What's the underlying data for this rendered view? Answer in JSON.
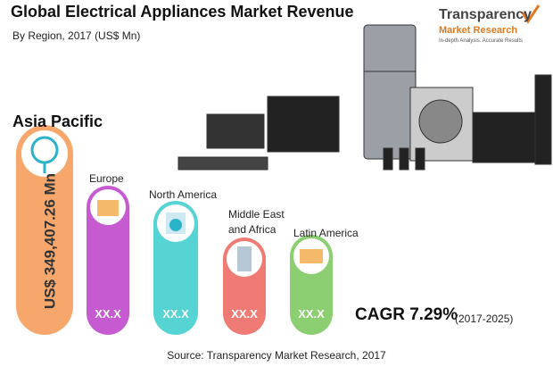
{
  "header": {
    "title": "Global Electrical Appliances Market Revenue",
    "subtitle": "By Region, 2017 (US$ Mn)"
  },
  "logo": {
    "name_top": "Transparency",
    "name_bottom": "Market Research",
    "tagline": "In-depth Analysis. Accurate Results"
  },
  "regions": [
    {
      "name": "Asia Pacific",
      "value_label": "US$ 349,407.26 Mn"
    },
    {
      "name": "Europe",
      "value_label": "XX.X"
    },
    {
      "name": "North America",
      "value_label": "XX.X"
    },
    {
      "name": "Middle East and Africa",
      "value_label": "XX.X"
    },
    {
      "name": "Latin America",
      "value_label": "XX.X"
    }
  ],
  "cagr": {
    "label": "CAGR 7.29%",
    "period": "(2017-2025)"
  },
  "source": "Source: Transparency Market Research, 2017"
}
